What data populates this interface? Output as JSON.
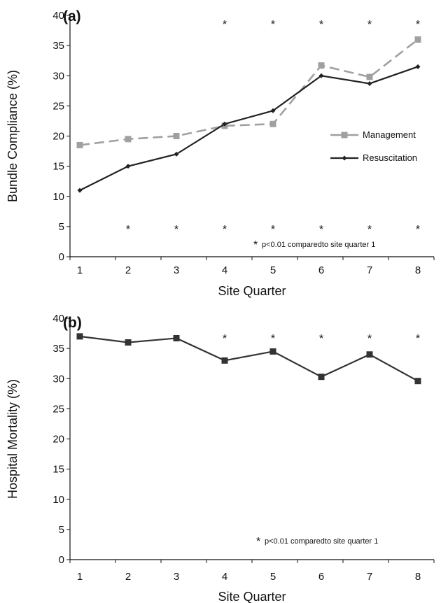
{
  "chart_data": [
    {
      "type": "line",
      "panel_label": "(a)",
      "xlabel": "Site Quarter",
      "ylabel": "Bundle Compliance (%)",
      "x": [
        1,
        2,
        3,
        4,
        5,
        6,
        7,
        8
      ],
      "ylim": [
        0,
        40
      ],
      "yticks": [
        0,
        5,
        10,
        15,
        20,
        25,
        30,
        35,
        40
      ],
      "grid": false,
      "legend_position": "right-middle",
      "series": [
        {
          "name": "Management",
          "values": [
            18.5,
            19.5,
            20,
            21.7,
            22,
            31.7,
            29.8,
            36
          ],
          "color": "#a0a0a0",
          "dash": "dashed",
          "marker": "square"
        },
        {
          "name": "Resuscitation",
          "values": [
            11,
            15,
            17,
            22,
            24.2,
            30,
            28.7,
            31.5
          ],
          "color": "#222222",
          "dash": "solid",
          "marker": "diamond"
        }
      ],
      "star_symbol": "*",
      "stars_top_x": [
        4,
        5,
        6,
        7,
        8
      ],
      "stars_bottom_x": [
        2,
        3,
        4,
        5,
        6,
        7,
        8
      ],
      "note_symbol": "*",
      "note": "p<0.01 comparedto site quarter 1"
    },
    {
      "type": "line",
      "panel_label": "(b)",
      "xlabel": "Site Quarter",
      "ylabel": "Hospital Mortality (%)",
      "x": [
        1,
        2,
        3,
        4,
        5,
        6,
        7,
        8
      ],
      "ylim": [
        0,
        40
      ],
      "yticks": [
        0,
        5,
        10,
        15,
        20,
        25,
        30,
        35,
        40
      ],
      "grid": false,
      "series": [
        {
          "values": [
            37,
            36,
            36.7,
            33,
            34.5,
            30.3,
            34,
            29.6
          ],
          "color": "#333333",
          "dash": "solid",
          "marker": "square"
        }
      ],
      "star_symbol": "*",
      "stars_top_x": [
        4,
        5,
        6,
        7,
        8
      ],
      "note_symbol": "*",
      "note": "p<0.01 comparedto site quarter 1"
    }
  ]
}
